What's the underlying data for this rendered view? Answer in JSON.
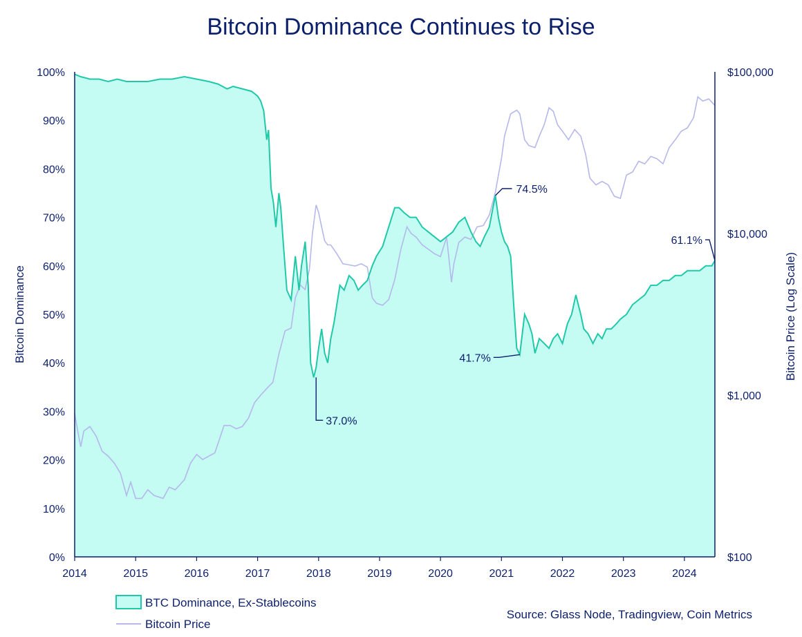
{
  "chart_data": {
    "type": "area",
    "title": "Bitcoin Dominance Continues to Rise",
    "xlabel": "",
    "ylabel": "Bitcoin Dominance",
    "y2label": "Bitcoin Price (Log Scale)",
    "x_ticks": [
      "2014",
      "2015",
      "2016",
      "2017",
      "2018",
      "2019",
      "2020",
      "2021",
      "2022",
      "2023",
      "2024"
    ],
    "y_ticks": [
      "0%",
      "10%",
      "20%",
      "30%",
      "40%",
      "50%",
      "60%",
      "70%",
      "80%",
      "90%",
      "100%"
    ],
    "y2_ticks": [
      "$100",
      "$1,000",
      "$10,000",
      "$100,000"
    ],
    "xlim": [
      2014.0,
      2024.5
    ],
    "ylim": [
      0,
      100
    ],
    "y2lim": [
      100,
      100000
    ],
    "series": [
      {
        "name": "BTC Dominance, Ex-Stablecoins",
        "axis": "left",
        "color": "#1fc9a8",
        "fill": "#c4fbf2",
        "x": [
          2014.0,
          2014.1,
          2014.25,
          2014.4,
          2014.55,
          2014.7,
          2014.85,
          2015.0,
          2015.2,
          2015.4,
          2015.6,
          2015.8,
          2016.0,
          2016.2,
          2016.35,
          2016.5,
          2016.6,
          2016.75,
          2016.9,
          2017.0,
          2017.05,
          2017.1,
          2017.15,
          2017.18,
          2017.22,
          2017.26,
          2017.3,
          2017.35,
          2017.38,
          2017.42,
          2017.48,
          2017.55,
          2017.62,
          2017.68,
          2017.72,
          2017.78,
          2017.83,
          2017.87,
          2017.92,
          2017.96,
          2018.0,
          2018.05,
          2018.1,
          2018.15,
          2018.2,
          2018.25,
          2018.3,
          2018.35,
          2018.42,
          2018.5,
          2018.58,
          2018.65,
          2018.72,
          2018.8,
          2018.88,
          2018.95,
          2019.05,
          2019.15,
          2019.25,
          2019.32,
          2019.4,
          2019.5,
          2019.6,
          2019.7,
          2019.8,
          2019.9,
          2020.0,
          2020.1,
          2020.2,
          2020.3,
          2020.4,
          2020.5,
          2020.58,
          2020.65,
          2020.72,
          2020.8,
          2020.86,
          2020.9,
          2020.95,
          2021.0,
          2021.05,
          2021.1,
          2021.15,
          2021.2,
          2021.25,
          2021.3,
          2021.38,
          2021.45,
          2021.5,
          2021.55,
          2021.62,
          2021.7,
          2021.78,
          2021.85,
          2021.92,
          2022.0,
          2022.08,
          2022.15,
          2022.22,
          2022.3,
          2022.35,
          2022.42,
          2022.5,
          2022.58,
          2022.65,
          2022.72,
          2022.8,
          2022.88,
          2022.95,
          2023.05,
          2023.15,
          2023.25,
          2023.35,
          2023.45,
          2023.55,
          2023.65,
          2023.75,
          2023.85,
          2023.95,
          2024.05,
          2024.15,
          2024.25,
          2024.35,
          2024.45,
          2024.5
        ],
        "values": [
          99.5,
          99,
          98.5,
          98.5,
          98,
          98.5,
          98,
          98,
          98,
          98.5,
          98.5,
          99,
          98.5,
          98,
          97.5,
          96.5,
          97,
          96.5,
          96,
          95,
          94,
          92,
          86,
          88,
          76,
          73,
          68,
          75,
          72,
          65,
          55,
          53,
          62,
          55,
          60,
          65,
          56,
          40,
          37,
          39,
          43,
          47,
          42,
          40,
          45,
          48,
          52,
          56,
          55,
          58,
          57,
          55,
          56,
          57,
          60,
          62,
          64,
          68,
          72,
          72,
          71,
          70,
          70,
          68,
          67,
          66,
          65,
          66,
          67,
          69,
          70,
          67,
          65,
          64,
          66,
          68,
          72,
          74.5,
          70,
          67,
          65,
          64,
          62,
          52,
          43,
          41.7,
          50,
          48,
          46,
          42,
          45,
          44,
          43,
          45,
          46,
          44,
          48,
          50,
          54,
          50,
          47,
          46,
          44,
          46,
          45,
          47,
          47,
          48,
          49,
          50,
          52,
          53,
          54,
          56,
          56,
          57,
          57,
          58,
          58,
          59,
          59,
          59,
          60,
          60,
          61.1
        ]
      },
      {
        "name": "Bitcoin Price",
        "axis": "right",
        "color": "#b4b8ea",
        "x": [
          2014.0,
          2014.05,
          2014.1,
          2014.15,
          2014.25,
          2014.35,
          2014.45,
          2014.55,
          2014.65,
          2014.75,
          2014.85,
          2014.92,
          2015.0,
          2015.1,
          2015.2,
          2015.3,
          2015.45,
          2015.55,
          2015.65,
          2015.8,
          2015.9,
          2016.0,
          2016.1,
          2016.2,
          2016.3,
          2016.45,
          2016.55,
          2016.65,
          2016.75,
          2016.85,
          2016.95,
          2017.05,
          2017.15,
          2017.25,
          2017.35,
          2017.45,
          2017.55,
          2017.62,
          2017.7,
          2017.78,
          2017.85,
          2017.9,
          2017.96,
          2018.0,
          2018.05,
          2018.1,
          2018.15,
          2018.2,
          2018.3,
          2018.4,
          2018.5,
          2018.6,
          2018.7,
          2018.8,
          2018.88,
          2018.95,
          2019.05,
          2019.15,
          2019.25,
          2019.35,
          2019.45,
          2019.52,
          2019.6,
          2019.7,
          2019.8,
          2019.9,
          2020.0,
          2020.1,
          2020.18,
          2020.22,
          2020.3,
          2020.4,
          2020.5,
          2020.6,
          2020.7,
          2020.8,
          2020.9,
          2020.95,
          2021.0,
          2021.05,
          2021.15,
          2021.25,
          2021.3,
          2021.38,
          2021.45,
          2021.55,
          2021.62,
          2021.7,
          2021.78,
          2021.85,
          2021.92,
          2022.0,
          2022.1,
          2022.2,
          2022.3,
          2022.38,
          2022.45,
          2022.55,
          2022.65,
          2022.75,
          2022.85,
          2022.95,
          2023.05,
          2023.15,
          2023.25,
          2023.35,
          2023.45,
          2023.55,
          2023.65,
          2023.75,
          2023.85,
          2023.95,
          2024.05,
          2024.15,
          2024.22,
          2024.3,
          2024.4,
          2024.5
        ],
        "values": [
          770,
          600,
          480,
          600,
          640,
          560,
          450,
          420,
          380,
          330,
          240,
          290,
          230,
          230,
          260,
          240,
          230,
          270,
          260,
          300,
          380,
          430,
          400,
          420,
          440,
          650,
          650,
          620,
          640,
          720,
          900,
          1000,
          1100,
          1200,
          1800,
          2500,
          2600,
          4000,
          4800,
          4500,
          6000,
          10000,
          15000,
          13500,
          11000,
          9000,
          8500,
          8500,
          7500,
          6500,
          6400,
          6300,
          6500,
          6200,
          4000,
          3700,
          3600,
          3900,
          5200,
          8000,
          11000,
          10000,
          9500,
          8500,
          8000,
          7500,
          7200,
          9500,
          5000,
          6500,
          8800,
          9500,
          9200,
          11000,
          11200,
          13000,
          18000,
          23000,
          29000,
          40000,
          55000,
          58000,
          55000,
          38000,
          35000,
          34000,
          40000,
          47000,
          60000,
          57000,
          47000,
          43000,
          38000,
          44000,
          40000,
          31000,
          22000,
          20000,
          21000,
          20000,
          17000,
          16500,
          23000,
          24000,
          28000,
          27000,
          30000,
          29000,
          27000,
          34000,
          38000,
          43000,
          45000,
          52000,
          70000,
          66000,
          68000,
          62000
        ]
      }
    ],
    "annotations": [
      {
        "label": "37.0%",
        "x": 2017.96,
        "y": 37.0
      },
      {
        "label": "41.7%",
        "x": 2021.3,
        "y": 41.7
      },
      {
        "label": "74.5%",
        "x": 2020.9,
        "y": 74.5
      },
      {
        "label": "61.1%",
        "x": 2024.5,
        "y": 61.1
      }
    ],
    "source": "Source: Glass Node, Tradingview, Coin Metrics"
  },
  "colors": {
    "axis": "#0b1f6b",
    "dominance_line": "#1fc9a8",
    "dominance_fill": "#c4fbf2",
    "price_line": "#b4b8ea"
  }
}
